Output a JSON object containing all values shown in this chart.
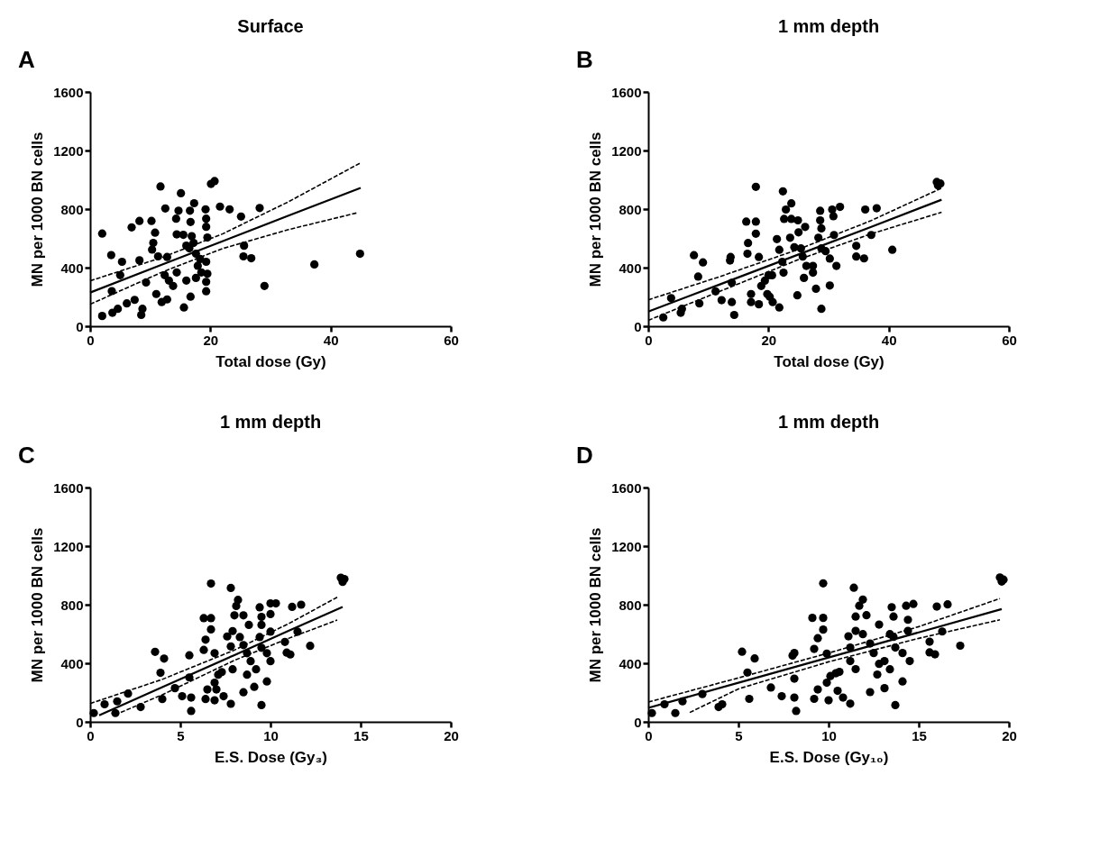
{
  "chart_data": [
    {
      "type": "scatter",
      "title": "Surface",
      "xlabel": "Total dose (Gy)",
      "ylabel": "MN per 1000 BN cells",
      "annotations": [
        "A"
      ],
      "grid": false,
      "xlim": [
        0,
        60
      ],
      "xticks": [
        0,
        20,
        40,
        60
      ],
      "ylim": [
        0,
        1600
      ],
      "yticks": [
        0,
        400,
        800,
        1200,
        1600
      ],
      "series": [
        {
          "marker": "circle",
          "color": "#000000",
          "x": [
            2,
            2,
            3.6,
            3.5,
            3.7,
            4.6,
            5.3,
            5,
            6.1,
            7.4,
            8.2,
            8.7,
            8.5,
            6.9,
            8.2,
            9.3,
            10.2,
            10.8,
            10.5,
            10.3,
            11,
            11.7,
            12.5,
            11.3,
            11.9,
            12.8,
            12.8,
            12.4,
            13.1,
            13.8,
            14.4,
            15.1,
            14.7,
            14.3,
            14.4,
            15.5,
            16,
            15.6,
            16.7,
            16.7,
            17.3,
            16.6,
            16.9,
            16,
            16.5,
            17.2,
            17.6,
            17.9,
            18.3,
            17.6,
            18.5,
            19.2,
            19.3,
            19.3,
            19.5,
            19.3,
            19.5,
            19.3,
            19.3,
            20.1,
            20.7,
            21.6,
            23.2,
            25.1,
            25.6,
            25.5,
            26.8,
            28.2,
            29,
            37.3,
            44.9
          ],
          "values": [
            70,
            633,
            240,
            486,
            92,
            119,
            440,
            349,
            156,
            180,
            719,
            119,
            77,
            675,
            450,
            299,
            719,
            639,
            569,
            523,
            220,
            954,
            804,
            477,
            165,
            183,
            473,
            349,
            312,
            275,
            367,
            908,
            789,
            734,
            627,
            624,
            312,
            128,
            202,
            712,
            840,
            789,
            615,
            550,
            532,
            569,
            495,
            413,
            459,
            330,
            367,
            798,
            734,
            679,
            606,
            440,
            358,
            303,
            239,
            972,
            991,
            817,
            798,
            749,
            550,
            477,
            464,
            807,
            275,
            422,
            495
          ]
        },
        {
          "type": "line",
          "line_style": "solid",
          "color": "#000000",
          "x": [
            0,
            12,
            22,
            33,
            45
          ],
          "values": [
            230,
            421,
            580,
            755,
            945
          ]
        },
        {
          "type": "line",
          "line_style": "dashed",
          "color": "#000000",
          "x": [
            0,
            12,
            22,
            33,
            45
          ],
          "values": [
            310,
            470,
            630,
            850,
            1116
          ]
        },
        {
          "type": "line",
          "line_style": "dashed",
          "color": "#000000",
          "x": [
            0,
            12,
            22,
            33,
            44.5
          ],
          "values": [
            150,
            370,
            530,
            660,
            775
          ]
        }
      ]
    },
    {
      "type": "scatter",
      "title": "1 mm depth",
      "xlabel": "Total dose (Gy)",
      "ylabel": "MN per 1000 BN cells",
      "annotations": [
        "B"
      ],
      "grid": false,
      "xlim": [
        0,
        60
      ],
      "xticks": [
        0,
        20,
        40,
        60
      ],
      "ylim": [
        0,
        1600
      ],
      "yticks": [
        0,
        400,
        800,
        1200,
        1600
      ],
      "series": [
        {
          "marker": "circle",
          "color": "#000000",
          "x": [
            2.5,
            3.8,
            5.6,
            5.4,
            7.6,
            8.3,
            9.1,
            8.5,
            11.2,
            12.2,
            13.7,
            13.6,
            13.9,
            13.9,
            14.3,
            16.3,
            16.6,
            16.5,
            17.1,
            17.1,
            17.9,
            17.9,
            17.9,
            18.4,
            18.4,
            18.8,
            19.4,
            19.8,
            20,
            20.6,
            20.2,
            20.7,
            21.8,
            21.4,
            21.8,
            22.3,
            22.5,
            22.4,
            22.9,
            23.8,
            22.6,
            23.8,
            23.6,
            24.3,
            24.9,
            25,
            24.8,
            25.4,
            25.7,
            26.1,
            26.3,
            27.4,
            27.4,
            27.9,
            25.9,
            28.6,
            28.6,
            28.8,
            28.3,
            28.8,
            28.8,
            29.5,
            30.2,
            30.2,
            30.6,
            30.8,
            30.9,
            31.3,
            31.9,
            34.6,
            34.6,
            35.9,
            36.1,
            37.1,
            38,
            40.6,
            48,
            48.6,
            48.2
          ],
          "values": [
            60,
            192,
            119,
            92,
            485,
            339,
            436,
            156,
            238,
            178,
            473,
            449,
            297,
            165,
            77,
            714,
            568,
            495,
            165,
            220,
            952,
            714,
            632,
            473,
            150,
            275,
            311,
            220,
            348,
            348,
            201,
            165,
            128,
            595,
            522,
            440,
            366,
            921,
            797,
            839,
            733,
            733,
            604,
            540,
            723,
            641,
            211,
            531,
            476,
            678,
            412,
            412,
            366,
            256,
            330,
            788,
            723,
            668,
            604,
            531,
            119,
            513,
            462,
            278,
            797,
            751,
            623,
            412,
            815,
            549,
            476,
            463,
            797,
            623,
            806,
            522,
            985,
            974,
            962
          ]
        },
        {
          "type": "line",
          "line_style": "solid",
          "color": "#000000",
          "x": [
            0,
            12,
            25,
            37,
            48.8
          ],
          "values": [
            100,
            287,
            490,
            677,
            864
          ]
        },
        {
          "type": "line",
          "line_style": "dashed",
          "color": "#000000",
          "x": [
            0,
            12,
            25,
            37,
            48.8
          ],
          "values": [
            180,
            340,
            525,
            720,
            943
          ]
        },
        {
          "type": "line",
          "line_style": "dashed",
          "color": "#000000",
          "x": [
            0,
            12,
            25,
            37,
            48.8
          ],
          "values": [
            40,
            240,
            455,
            630,
            778
          ]
        }
      ]
    },
    {
      "type": "scatter",
      "title": "1 mm depth",
      "xlabel": "E.S. Dose (Gy₃)",
      "ylabel": "MN per 1000 BN cells",
      "annotations": [
        "C"
      ],
      "grid": false,
      "xlim": [
        0,
        20
      ],
      "xticks": [
        0,
        5,
        10,
        15,
        20
      ],
      "ylim": [
        0,
        1600
      ],
      "yticks": [
        0,
        400,
        800,
        1200,
        1600
      ],
      "series": [
        {
          "marker": "circle",
          "color": "#000000",
          "x": [
            0.2,
            0.8,
            1.4,
            1.5,
            2.1,
            2.8,
            3.6,
            4.1,
            3.9,
            4,
            4.7,
            5.1,
            5.6,
            5.5,
            5.5,
            5.6,
            6.3,
            6.7,
            6.7,
            6.4,
            6.3,
            6.9,
            6.7,
            6.4,
            6.9,
            6.5,
            6.9,
            7.1,
            7.3,
            7.4,
            7.8,
            7,
            7.8,
            8.2,
            8.1,
            8,
            8.5,
            7.6,
            7.9,
            8.3,
            7.8,
            7.9,
            8.5,
            8.8,
            8.7,
            8.9,
            9.2,
            8.7,
            9.1,
            8.5,
            9.5,
            9.4,
            9.5,
            10,
            10.3,
            10,
            9.5,
            10,
            9.4,
            9.5,
            9.8,
            10,
            9.8,
            10.8,
            10.9,
            11.1,
            11.2,
            11.7,
            11.5,
            12.2,
            13.9,
            14,
            14.1
          ],
          "values": [
            60,
            120,
            60,
            140,
            193,
            101,
            478,
            432,
            335,
            156,
            230,
            175,
            166,
            303,
            454,
            74,
            708,
            708,
            631,
            561,
            491,
            469,
            944,
            156,
            147,
            221,
            267,
            322,
            340,
            175,
            123,
            221,
            914,
            833,
            791,
            727,
            727,
            583,
            620,
            579,
            515,
            359,
            524,
            662,
            469,
            414,
            359,
            322,
            239,
            202,
            114,
            782,
            717,
            809,
            809,
            736,
            662,
            616,
            579,
            506,
            469,
            414,
            276,
            546,
            473,
            460,
            785,
            800,
            616,
            519,
            984,
            956,
            975
          ]
        },
        {
          "type": "line",
          "line_style": "solid",
          "color": "#000000",
          "x": [
            0.5,
            4,
            8,
            11,
            14
          ],
          "values": [
            45,
            237,
            456,
            621,
            785
          ]
        },
        {
          "type": "line",
          "line_style": "dashed",
          "color": "#000000",
          "x": [
            0,
            4,
            8,
            11,
            13.7
          ],
          "values": [
            125,
            290,
            490,
            670,
            851
          ]
        },
        {
          "type": "line",
          "line_style": "dashed",
          "color": "#000000",
          "x": [
            1.7,
            4,
            8,
            11,
            13.7
          ],
          "values": [
            64,
            185,
            420,
            570,
            695
          ]
        }
      ]
    },
    {
      "type": "scatter",
      "title": "1 mm depth",
      "xlabel": "E.S. Dose (Gy₁₀)",
      "ylabel": "MN per 1000 BN cells",
      "annotations": [
        "D"
      ],
      "grid": false,
      "xlim": [
        0,
        20
      ],
      "xticks": [
        0,
        5,
        10,
        15,
        20
      ],
      "ylim": [
        0,
        1600
      ],
      "yticks": [
        0,
        400,
        800,
        1200,
        1600
      ],
      "series": [
        {
          "marker": "circle",
          "color": "#000000",
          "x": [
            0.2,
            0.9,
            1.5,
            1.9,
            3,
            3.9,
            4.1,
            5.2,
            5.5,
            5.6,
            5.9,
            6.8,
            7.4,
            8,
            8.1,
            8.1,
            8.1,
            8.2,
            9.1,
            9.7,
            9.7,
            9.4,
            9.2,
            9.9,
            9.7,
            9.2,
            9.4,
            9.9,
            10.1,
            10.4,
            10.5,
            10.6,
            10.8,
            11.2,
            10,
            11.4,
            11.9,
            11.7,
            11.5,
            12.1,
            11.1,
            11.5,
            11.9,
            11.2,
            11.2,
            11.5,
            12.3,
            12.8,
            12.5,
            12.8,
            13.1,
            13.4,
            12.7,
            13.1,
            12.3,
            13.7,
            13.5,
            13.6,
            14.3,
            14.7,
            14.4,
            13.4,
            14.4,
            13.6,
            13.7,
            14.1,
            14.5,
            14.1,
            15.6,
            15.6,
            15.9,
            16,
            16.6,
            16.3,
            17.3,
            19.5,
            19.6,
            19.7
          ],
          "values": [
            60,
            120,
            60,
            140,
            190,
            101,
            120,
            479,
            337,
            157,
            433,
            234,
            175,
            452,
            470,
            295,
            166,
            74,
            710,
            710,
            630,
            571,
            498,
            466,
            946,
            157,
            221,
            267,
            313,
            332,
            212,
            341,
            166,
            124,
            147,
            916,
            835,
            793,
            719,
            728,
            584,
            621,
            599,
            507,
            415,
            360,
            535,
            664,
            470,
            396,
            415,
            359,
            323,
            230,
            203,
            114,
            783,
            719,
            793,
            805,
            697,
            599,
            621,
            580,
            507,
            470,
            415,
            276,
            547,
            474,
            461,
            787,
            802,
            617,
            520,
            986,
            958,
            971
          ]
        },
        {
          "type": "line",
          "line_style": "solid",
          "color": "#000000",
          "x": [
            0,
            5,
            10,
            15,
            19.6
          ],
          "values": [
            95,
            267,
            439,
            611,
            770
          ]
        },
        {
          "type": "line",
          "line_style": "dashed",
          "color": "#000000",
          "x": [
            0,
            5,
            10,
            15,
            19.5
          ],
          "values": [
            135,
            300,
            470,
            650,
            842
          ]
        },
        {
          "type": "line",
          "line_style": "dashed",
          "color": "#000000",
          "x": [
            2.3,
            5,
            10,
            15,
            19.5
          ],
          "values": [
            64,
            225,
            410,
            570,
            697
          ]
        }
      ]
    }
  ]
}
